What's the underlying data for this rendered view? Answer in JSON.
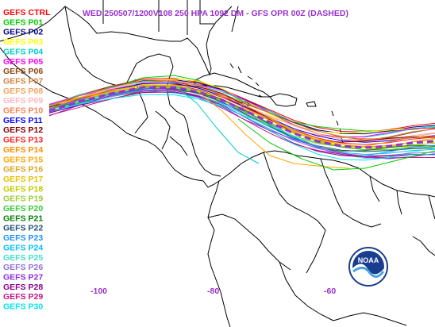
{
  "title": "WED 250507/1200V108  250 HPA 1092 DM - GFS OPR 00Z (DASHED)",
  "title_color": "#9932cc",
  "axis_label_color": "#9932cc",
  "x_labels": [
    "-100",
    "-80",
    "-60"
  ],
  "legend": [
    {
      "label": "GEFS CTRL",
      "color": "#ff0000"
    },
    {
      "label": "GEFS P01",
      "color": "#00cc00"
    },
    {
      "label": "GEFS P02",
      "color": "#000080"
    },
    {
      "label": "GEFS P03",
      "color": "#ffff00"
    },
    {
      "label": "GEFS P04",
      "color": "#00cccc"
    },
    {
      "label": "GEFS P05",
      "color": "#ff00ff"
    },
    {
      "label": "GEFS P06",
      "color": "#8b4513"
    },
    {
      "label": "GEFS P07",
      "color": "#cd853f"
    },
    {
      "label": "GEFS P08",
      "color": "#f4a460"
    },
    {
      "label": "GEFS P09",
      "color": "#ffb6c1"
    },
    {
      "label": "GEFS P10",
      "color": "#ff7f50"
    },
    {
      "label": "GEFS P11",
      "color": "#0000ff"
    },
    {
      "label": "GEFS P12",
      "color": "#800000"
    },
    {
      "label": "GEFS P13",
      "color": "#ff2020"
    },
    {
      "label": "GEFS P14",
      "color": "#ff8c00"
    },
    {
      "label": "GEFS P15",
      "color": "#ffa500"
    },
    {
      "label": "GEFS P16",
      "color": "#daa520"
    },
    {
      "label": "GEFS P17",
      "color": "#e6c200"
    },
    {
      "label": "GEFS P18",
      "color": "#c8c800"
    },
    {
      "label": "GEFS P19",
      "color": "#9acd32"
    },
    {
      "label": "GEFS P20",
      "color": "#32cd32"
    },
    {
      "label": "GEFS P21",
      "color": "#008000"
    },
    {
      "label": "GEFS P22",
      "color": "#1f4e79"
    },
    {
      "label": "GEFS P23",
      "color": "#1e90ff"
    },
    {
      "label": "GEFS P24",
      "color": "#00bfff"
    },
    {
      "label": "GEFS P25",
      "color": "#40e0d0"
    },
    {
      "label": "GEFS P26",
      "color": "#9370db"
    },
    {
      "label": "GEFS P27",
      "color": "#8a2be2"
    },
    {
      "label": "GEFS P28",
      "color": "#8b008b"
    },
    {
      "label": "GEFS P29",
      "color": "#c71585"
    },
    {
      "label": "GEFS P30",
      "color": "#00e5ee"
    }
  ],
  "opr_color": "#9932cc",
  "logo_text": "NOAA"
}
